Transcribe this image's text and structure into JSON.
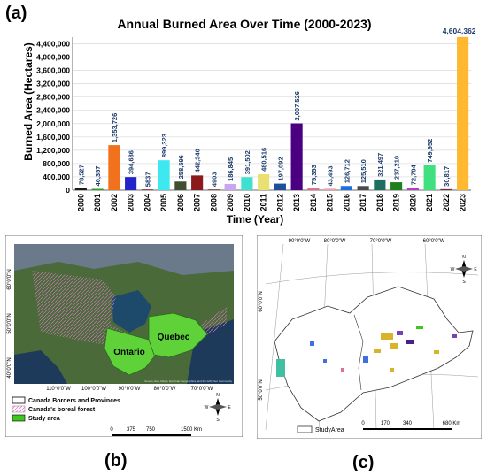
{
  "panels": {
    "a": "(a)",
    "b": "(b)",
    "c": "(c)"
  },
  "chart_data": {
    "type": "bar",
    "title": "Annual Burned Area Over Time (2000-2023)",
    "xlabel": "Time (Year)",
    "ylabel": "Burned Area (Hectares)",
    "ylim": [
      0,
      4600000
    ],
    "yticks": [
      "0",
      "400,000",
      "800,000",
      "1,200,000",
      "1,600,000",
      "2,000,000",
      "2,400,000",
      "2,800,000",
      "3,200,000",
      "3,600,000",
      "4,000,000",
      "4,400,000"
    ],
    "grid": true,
    "categories": [
      "2000",
      "2001",
      "2002",
      "2003",
      "2004",
      "2005",
      "2006",
      "2007",
      "2008",
      "2009",
      "2010",
      "2011",
      "2012",
      "2013",
      "2014",
      "2015",
      "2016",
      "2017",
      "2018",
      "2019",
      "2020",
      "2021",
      "2022",
      "2023"
    ],
    "values": [
      78527,
      40357,
      1353726,
      394686,
      5837,
      899323,
      258596,
      442340,
      4903,
      186845,
      391502,
      480516,
      197092,
      2007526,
      75353,
      43493,
      126712,
      125510,
      321497,
      237210,
      72794,
      749952,
      30817,
      4604362
    ],
    "labels": [
      "78,527",
      "40,357",
      "1,353,726",
      "394,686",
      "5837",
      "899,323",
      "258,596",
      "442,340",
      "4903",
      "186,845",
      "391,502",
      "480,516",
      "197,092",
      "2,007,526",
      "75,353",
      "43,493",
      "126,712",
      "125,510",
      "321,497",
      "237,210",
      "72,794",
      "749,952",
      "30,817",
      "4,604,362"
    ],
    "colors": [
      "#1a1a1a",
      "#2ca02c",
      "#f2711c",
      "#2323c8",
      "#7a1f1f",
      "#3ee8f0",
      "#3f4f2f",
      "#8b1a1a",
      "#6b3a1a",
      "#c9a6f0",
      "#40e0d0",
      "#e8e070",
      "#1f4e9a",
      "#4b0082",
      "#e07090",
      "#f0a0b0",
      "#1e6fe0",
      "#4a4a4a",
      "#1f6f5f",
      "#1f7f1f",
      "#b040c0",
      "#40e080",
      "#703040",
      "#ffb830"
    ]
  },
  "map_b": {
    "legend": [
      "Canada Borders and Provinces",
      "Canada's boreal forest",
      "Study area"
    ],
    "regions": [
      "Ontario",
      "Quebec"
    ],
    "lon_labels": [
      "110°0'0\"W",
      "100°0'0\"W",
      "90°0'0\"W",
      "80°0'0\"W",
      "70°0'0\"W"
    ],
    "lat_labels": [
      "60°0'0\"N",
      "50°0'0\"N",
      "40°0'0\"N"
    ],
    "scale_labels": [
      "0",
      "375",
      "750",
      "1500 Km"
    ],
    "credit": "Source: Esri, Maxar, Earthstar Geographics, and the GIS User Community",
    "compass": [
      "N",
      "E",
      "S",
      "W"
    ]
  },
  "map_c": {
    "legend": [
      "StudyArea"
    ],
    "lon_labels": [
      "90°0'0\"W",
      "80°0'0\"W",
      "70°0'0\"W",
      "60°0'0\"W"
    ],
    "lat_labels": [
      "60°0'0\"N",
      "50°0'0\"N"
    ],
    "scale_labels": [
      "0",
      "170",
      "340",
      "680 Km"
    ],
    "compass": [
      "N",
      "E",
      "S",
      "W"
    ]
  }
}
